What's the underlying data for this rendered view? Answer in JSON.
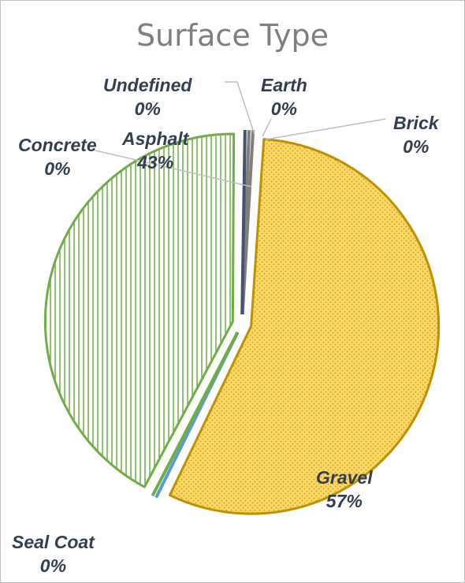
{
  "chart_data": {
    "type": "pie",
    "title": "Surface Type",
    "categories": [
      "Earth",
      "Brick",
      "Gravel",
      "Seal Coat",
      "Concrete",
      "Asphalt",
      "Undefined"
    ],
    "values": [
      0,
      0,
      57,
      0,
      0,
      43,
      0
    ],
    "value_labels": [
      "0%",
      "0%",
      "57%",
      "0%",
      "0%",
      "43%",
      "0%"
    ],
    "slice_colors": [
      "#7f7f7f",
      "#7f7f7f",
      "#ffc000",
      "#5b9bd5",
      "#70ad47",
      "#70ad47",
      "#44546a"
    ],
    "slice_patterns": [
      "solid",
      "solid",
      "dots",
      "solid",
      "solid",
      "vertical-lines",
      "solid"
    ],
    "legend": "none",
    "data_label_color": "#333f50"
  }
}
